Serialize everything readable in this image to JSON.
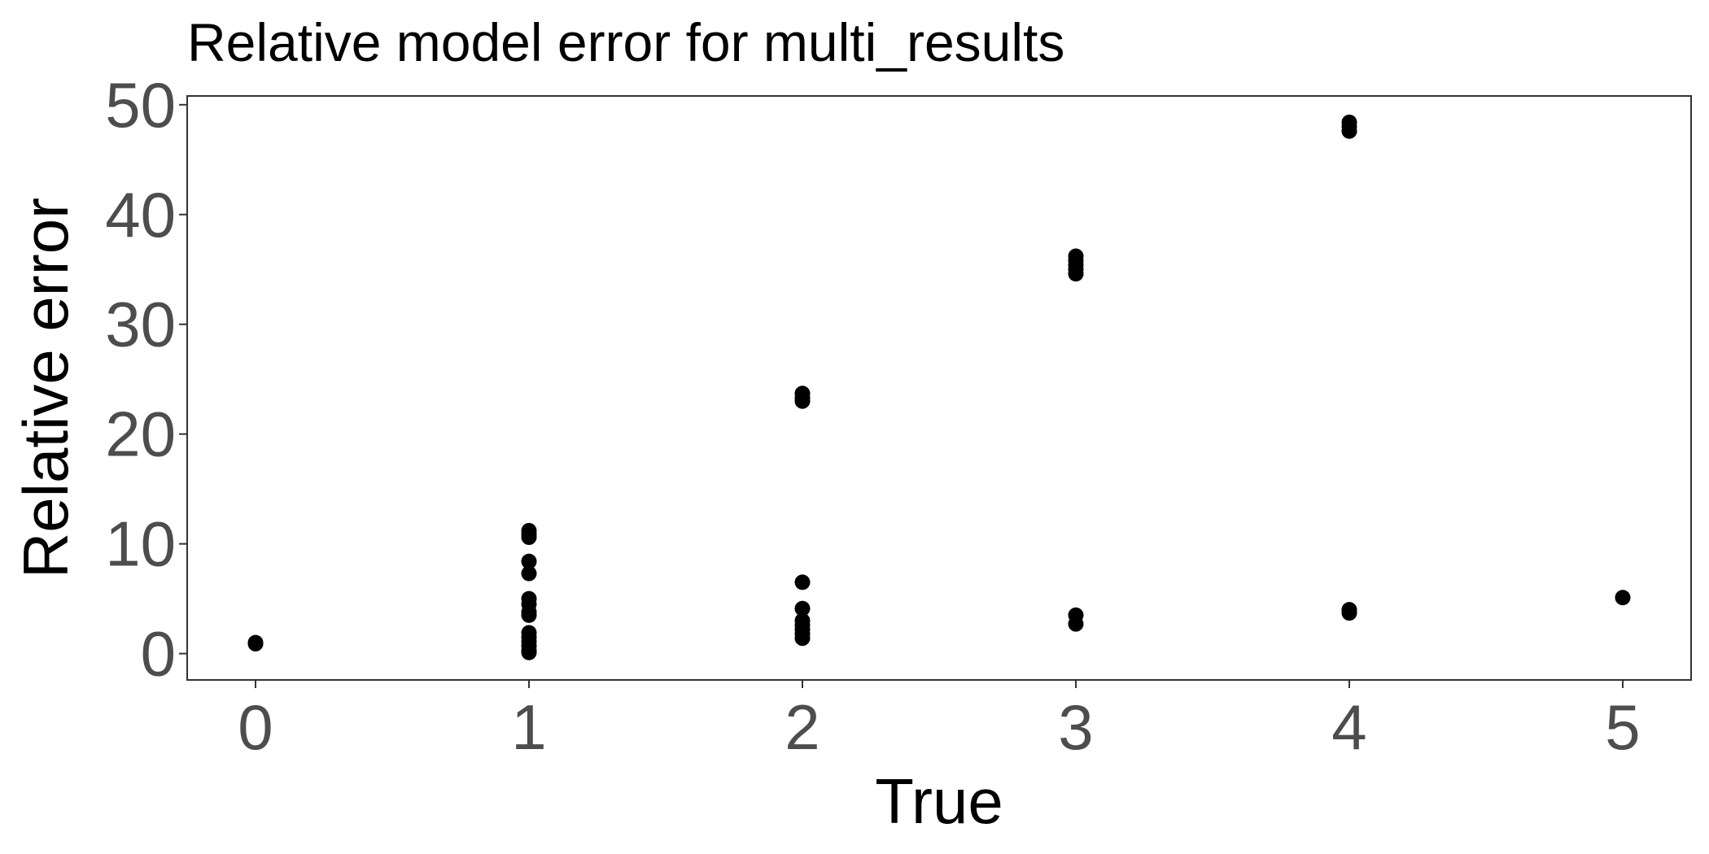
{
  "chart_data": {
    "type": "scatter",
    "title": "Relative model error for multi_results",
    "xlabel": "True",
    "ylabel": "Relative error",
    "xlim": [
      -0.25,
      5.25
    ],
    "ylim": [
      -2.4,
      50.8
    ],
    "xticks": [
      0,
      1,
      2,
      3,
      4,
      5
    ],
    "xtick_labels": [
      "0",
      "1",
      "2",
      "3",
      "4",
      "5"
    ],
    "yticks": [
      0,
      10,
      20,
      30,
      40,
      50
    ],
    "ytick_labels": [
      "0",
      "10",
      "20",
      "30",
      "40",
      "50"
    ],
    "grid": false,
    "point_color": "#000000",
    "series": [
      {
        "points": [
          {
            "x": 0,
            "y": 0.9
          },
          {
            "x": 0,
            "y": 1.0
          },
          {
            "x": 1,
            "y": 11.2
          },
          {
            "x": 1,
            "y": 10.9
          },
          {
            "x": 1,
            "y": 10.6
          },
          {
            "x": 1,
            "y": 8.4
          },
          {
            "x": 1,
            "y": 7.3
          },
          {
            "x": 1,
            "y": 5.0
          },
          {
            "x": 1,
            "y": 4.5
          },
          {
            "x": 1,
            "y": 3.8
          },
          {
            "x": 1,
            "y": 3.5
          },
          {
            "x": 1,
            "y": 1.9
          },
          {
            "x": 1,
            "y": 1.5
          },
          {
            "x": 1,
            "y": 1.1
          },
          {
            "x": 1,
            "y": 0.7
          },
          {
            "x": 1,
            "y": 0.3
          },
          {
            "x": 1,
            "y": 0.1
          },
          {
            "x": 2,
            "y": 23.7
          },
          {
            "x": 2,
            "y": 23.3
          },
          {
            "x": 2,
            "y": 23.0
          },
          {
            "x": 2,
            "y": 6.5
          },
          {
            "x": 2,
            "y": 4.1
          },
          {
            "x": 2,
            "y": 3.0
          },
          {
            "x": 2,
            "y": 2.6
          },
          {
            "x": 2,
            "y": 2.2
          },
          {
            "x": 2,
            "y": 1.8
          },
          {
            "x": 2,
            "y": 1.4
          },
          {
            "x": 3,
            "y": 36.2
          },
          {
            "x": 3,
            "y": 35.8
          },
          {
            "x": 3,
            "y": 35.4
          },
          {
            "x": 3,
            "y": 35.0
          },
          {
            "x": 3,
            "y": 34.6
          },
          {
            "x": 3,
            "y": 3.5
          },
          {
            "x": 3,
            "y": 2.7
          },
          {
            "x": 4,
            "y": 48.4
          },
          {
            "x": 4,
            "y": 48.0
          },
          {
            "x": 4,
            "y": 47.6
          },
          {
            "x": 4,
            "y": 4.0
          },
          {
            "x": 4,
            "y": 3.7
          },
          {
            "x": 5,
            "y": 5.1
          }
        ]
      }
    ]
  }
}
